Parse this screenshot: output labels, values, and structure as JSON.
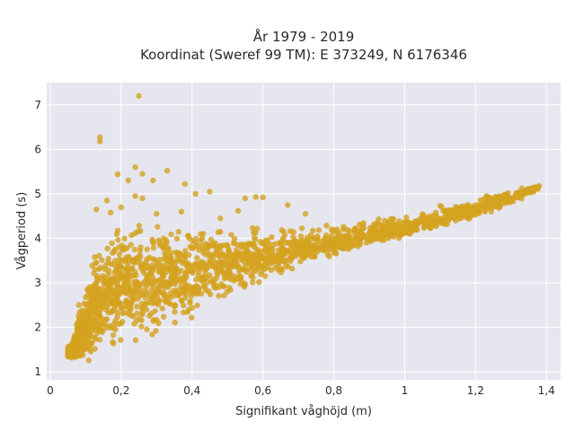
{
  "chart_data": {
    "type": "scatter",
    "title": [
      "År 1979 - 2019",
      "Koordinat (Sweref 99 TM): E 373249, N 6176346"
    ],
    "xlabel": "Signifikant våghöjd (m)",
    "ylabel": "Vågperiod (s)",
    "xlim": [
      -0.01,
      1.44
    ],
    "ylim": [
      0.82,
      7.5
    ],
    "xticks": [
      0,
      0.2,
      0.4,
      0.6,
      0.8,
      1,
      1.2,
      1.4
    ],
    "xtick_labels": [
      "0",
      "0,2",
      "0,4",
      "0,6",
      "0,8",
      "1",
      "1,2",
      "1,4"
    ],
    "yticks": [
      1,
      2,
      3,
      4,
      5,
      6,
      7
    ],
    "ytick_labels": [
      "1",
      "2",
      "3",
      "4",
      "5",
      "6",
      "7"
    ],
    "grid": true,
    "colors": {
      "marker": "#d4a21f",
      "plot_background": "#e6e6ef",
      "grid": "#ffffff"
    },
    "outliers": [
      {
        "x": 0.25,
        "y": 7.2
      },
      {
        "x": 0.14,
        "y": 6.27
      },
      {
        "x": 0.14,
        "y": 6.18
      },
      {
        "x": 0.24,
        "y": 5.6
      },
      {
        "x": 0.33,
        "y": 5.52
      },
      {
        "x": 0.19,
        "y": 5.44
      },
      {
        "x": 0.26,
        "y": 5.45
      },
      {
        "x": 0.38,
        "y": 5.22
      },
      {
        "x": 0.22,
        "y": 5.3
      },
      {
        "x": 0.29,
        "y": 5.3
      },
      {
        "x": 0.41,
        "y": 5.0
      },
      {
        "x": 0.45,
        "y": 5.05
      },
      {
        "x": 0.24,
        "y": 4.95
      },
      {
        "x": 0.26,
        "y": 4.9
      },
      {
        "x": 0.16,
        "y": 4.85
      },
      {
        "x": 0.55,
        "y": 4.9
      },
      {
        "x": 0.58,
        "y": 4.93
      },
      {
        "x": 0.6,
        "y": 4.92
      },
      {
        "x": 0.13,
        "y": 4.65
      },
      {
        "x": 0.2,
        "y": 4.7
      },
      {
        "x": 0.37,
        "y": 4.6
      },
      {
        "x": 0.67,
        "y": 4.75
      },
      {
        "x": 0.72,
        "y": 4.55
      },
      {
        "x": 0.17,
        "y": 4.58
      },
      {
        "x": 0.53,
        "y": 4.62
      },
      {
        "x": 0.48,
        "y": 4.45
      },
      {
        "x": 0.3,
        "y": 4.55
      }
    ],
    "envelope_upper": [
      [
        0.06,
        1.6
      ],
      [
        0.08,
        2.6
      ],
      [
        0.1,
        3.3
      ],
      [
        0.12,
        3.8
      ],
      [
        0.15,
        4.2
      ],
      [
        0.2,
        4.45
      ],
      [
        0.3,
        4.5
      ],
      [
        0.4,
        4.4
      ],
      [
        0.5,
        4.3
      ],
      [
        0.6,
        4.3
      ],
      [
        0.7,
        4.35
      ],
      [
        0.8,
        4.4
      ],
      [
        0.9,
        4.48
      ],
      [
        1.0,
        4.6
      ],
      [
        1.1,
        4.78
      ],
      [
        1.2,
        4.95
      ],
      [
        1.3,
        5.12
      ],
      [
        1.38,
        5.22
      ]
    ],
    "envelope_lower": [
      [
        0.06,
        1.3
      ],
      [
        0.08,
        1.15
      ],
      [
        0.1,
        1.1
      ],
      [
        0.15,
        1.2
      ],
      [
        0.2,
        1.35
      ],
      [
        0.3,
        1.6
      ],
      [
        0.4,
        2.0
      ],
      [
        0.5,
        2.5
      ],
      [
        0.6,
        2.95
      ],
      [
        0.7,
        3.3
      ],
      [
        0.8,
        3.55
      ],
      [
        0.9,
        3.8
      ],
      [
        1.0,
        4.0
      ],
      [
        1.1,
        4.2
      ],
      [
        1.2,
        4.45
      ],
      [
        1.3,
        4.75
      ],
      [
        1.38,
        5.1
      ]
    ],
    "center_line": [
      [
        0.06,
        1.45
      ],
      [
        0.1,
        2.0
      ],
      [
        0.15,
        2.6
      ],
      [
        0.2,
        2.85
      ],
      [
        0.3,
        3.1
      ],
      [
        0.4,
        3.25
      ],
      [
        0.5,
        3.45
      ],
      [
        0.6,
        3.6
      ],
      [
        0.7,
        3.75
      ],
      [
        0.8,
        3.88
      ],
      [
        0.9,
        4.05
      ],
      [
        1.0,
        4.22
      ],
      [
        1.1,
        4.42
      ],
      [
        1.2,
        4.65
      ],
      [
        1.3,
        4.92
      ],
      [
        1.38,
        5.17
      ]
    ]
  }
}
